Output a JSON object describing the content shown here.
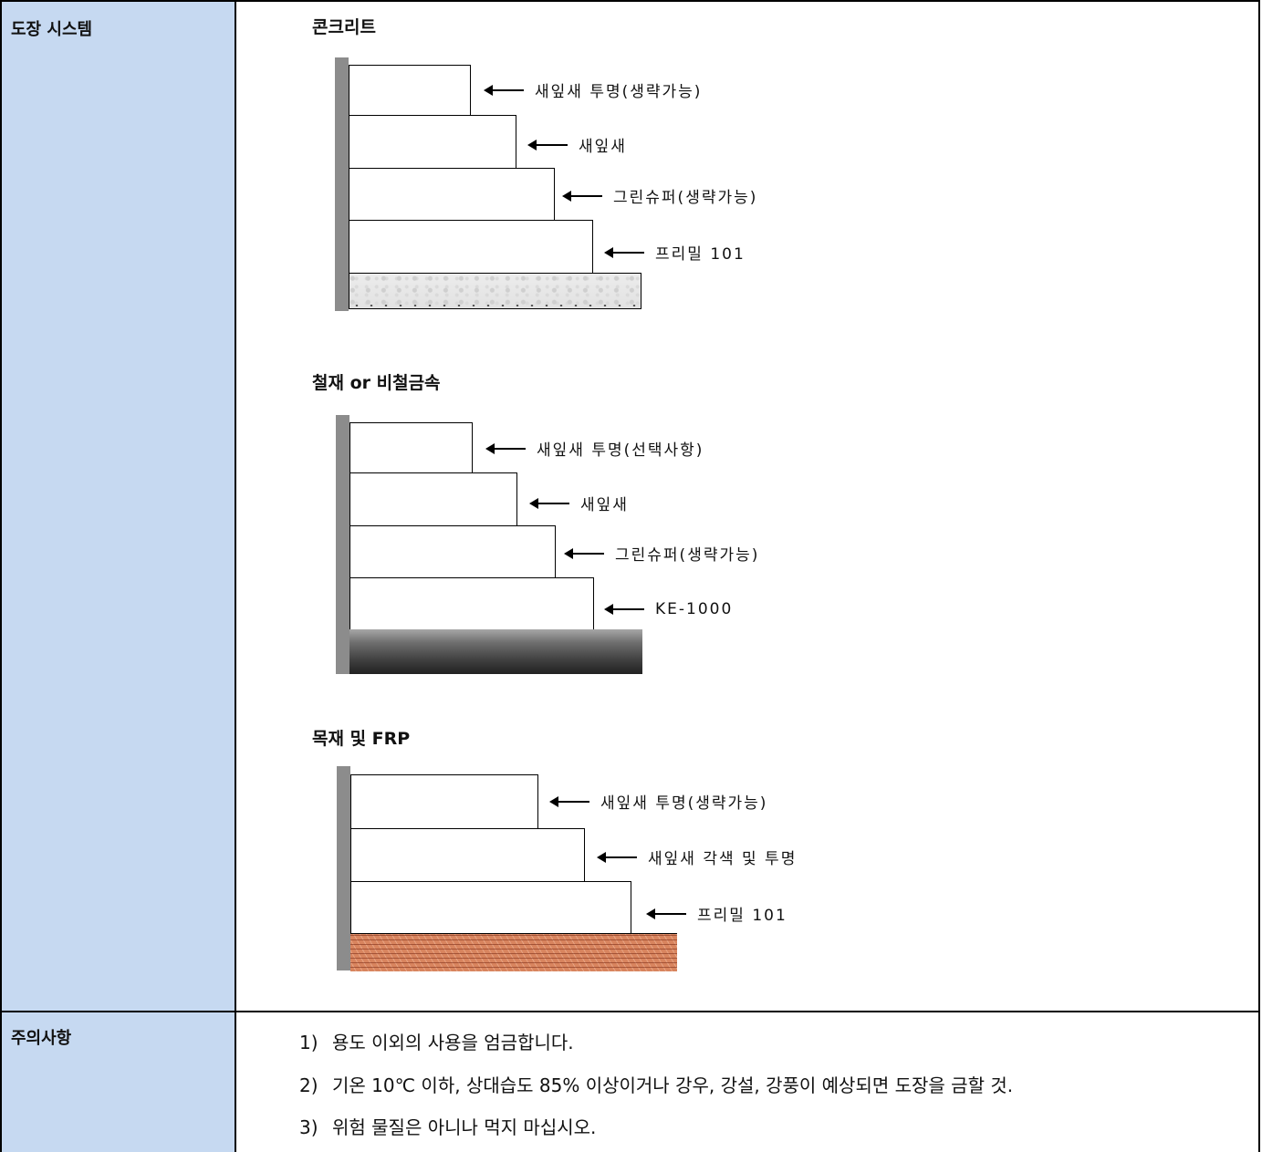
{
  "rows": {
    "system_label": "도장 시스템",
    "caution_label": "주의사항"
  },
  "sections": [
    {
      "title": "콘크리트",
      "substrate": "concrete",
      "layers": [
        "새잎새 투명(생략가능)",
        "새잎새",
        "그린슈퍼(생략가능)",
        "프리밀 101"
      ]
    },
    {
      "title": "철재 or 비철금속",
      "substrate": "steel",
      "layers": [
        "새잎새 투명(선택사항)",
        "새잎새",
        "그린슈퍼(생략가능)",
        "KE-1000"
      ]
    },
    {
      "title": "목재 및 FRP",
      "substrate": "wood",
      "layers": [
        "새잎새 투명(생략가능)",
        "새잎새 각색 및 투명",
        "프리밀 101"
      ]
    }
  ],
  "notes": [
    {
      "num": "1)",
      "text": "용도 이외의 사용을 엄금합니다."
    },
    {
      "num": "2)",
      "text": "기온 10℃ 이하, 상대습도 85% 이상이거나 강우, 강설, 강풍이 예상되면 도장을 금할 것."
    },
    {
      "num": "3)",
      "text": "위험 물질은 아니나 먹지 마십시오."
    }
  ]
}
